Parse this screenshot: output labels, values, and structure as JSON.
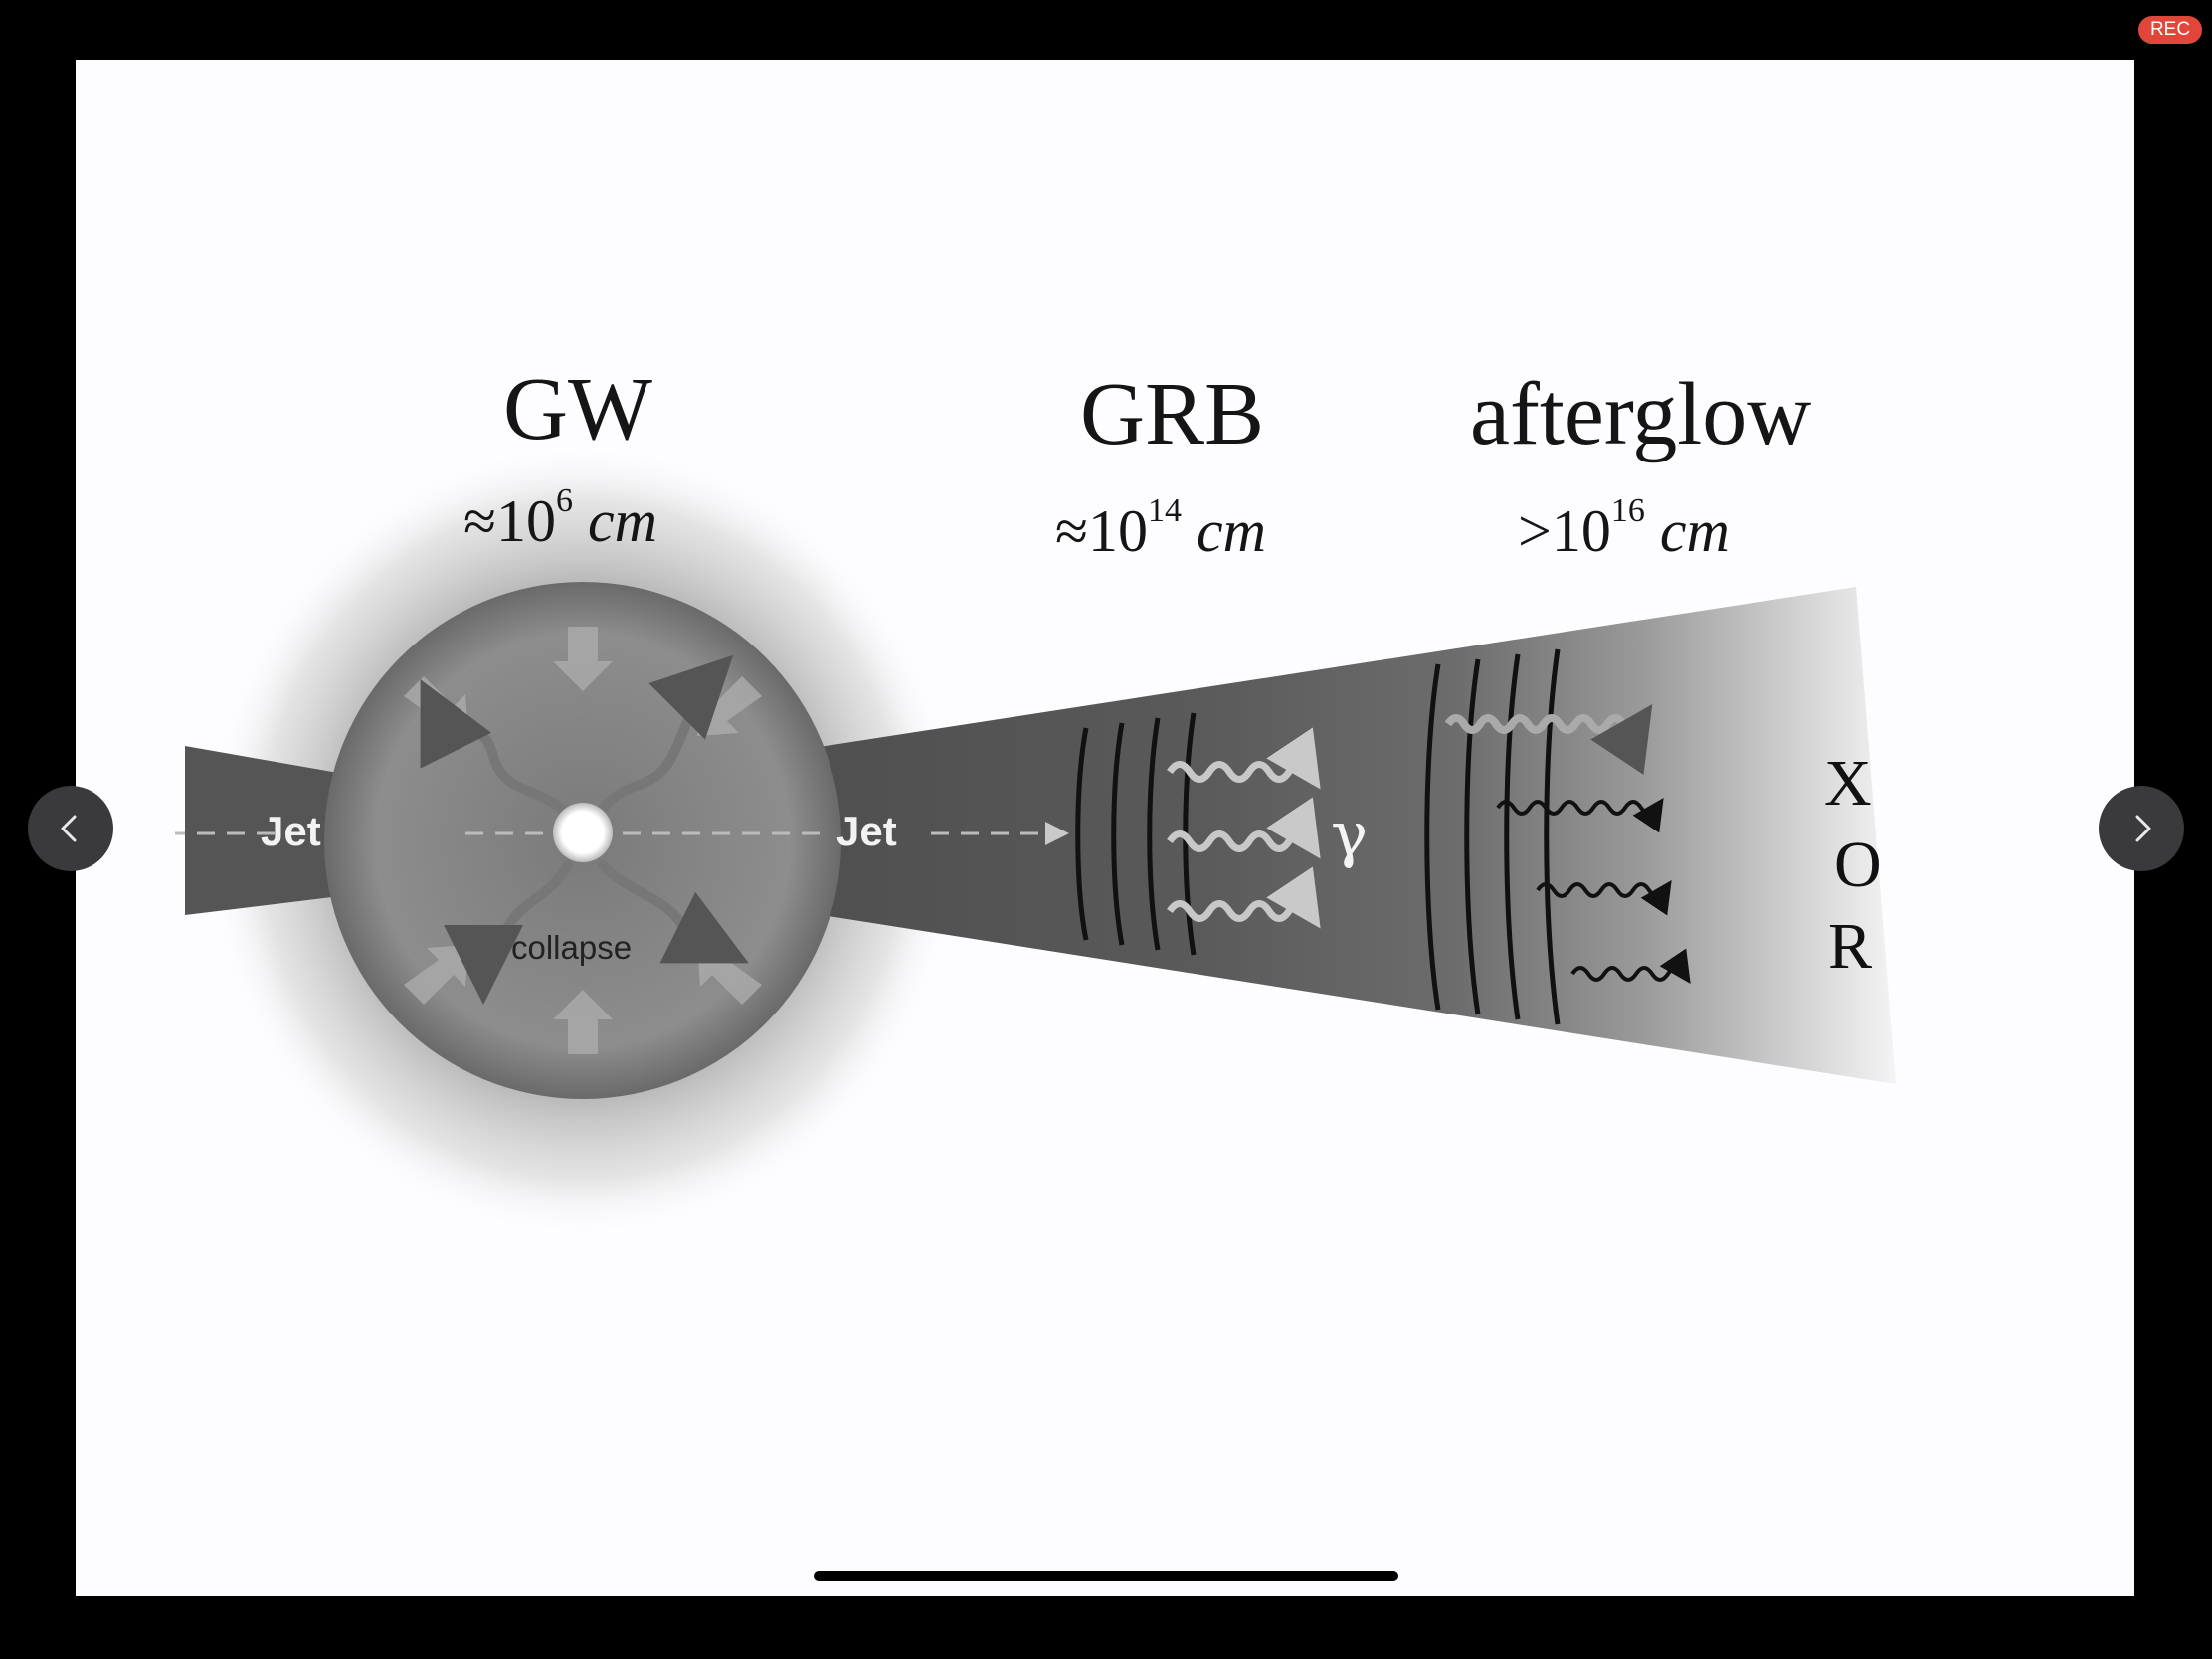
{
  "status": {
    "recording_label": "REC",
    "recording_color": "#e0473a"
  },
  "diagram": {
    "stages": [
      {
        "title": "GW",
        "scale_prefix": "≈",
        "scale_base": "10",
        "scale_exponent": "6",
        "scale_unit": "cm"
      },
      {
        "title": "GRB",
        "scale_prefix": "≈",
        "scale_base": "10",
        "scale_exponent": "14",
        "scale_unit": "cm"
      },
      {
        "title": "afterglow",
        "scale_prefix": ">",
        "scale_base": "10",
        "scale_exponent": "16",
        "scale_unit": "cm"
      }
    ],
    "jet_label": "Jet",
    "collapse_label": "collapse",
    "gamma_label": "γ",
    "afterglow_bands": [
      "X",
      "O",
      "R"
    ]
  },
  "navigation": {
    "previous_icon": "chevron-left-icon",
    "next_icon": "chevron-right-icon"
  }
}
